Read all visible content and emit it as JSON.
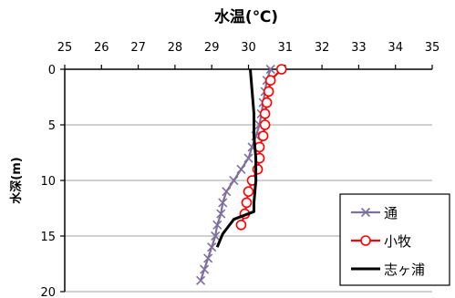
{
  "chart_data": {
    "type": "line",
    "title": "水温(℃)",
    "xlabel": "",
    "ylabel": "水深(m)",
    "x_axis_position": "top",
    "y_axis_inverted": true,
    "xlim": [
      25,
      35
    ],
    "ylim": [
      0,
      20
    ],
    "x_ticks": [
      "25",
      "26",
      "27",
      "28",
      "29",
      "30",
      "31",
      "32",
      "33",
      "34",
      "35"
    ],
    "y_ticks": [
      "0",
      "5",
      "10",
      "15",
      "20"
    ],
    "grid": "horizontal",
    "legend_position": "bottom-right",
    "series": [
      {
        "name": "通",
        "color": "#7f6fa0",
        "marker": "x",
        "points": [
          [
            30.6,
            0
          ],
          [
            30.5,
            1
          ],
          [
            30.45,
            2
          ],
          [
            30.4,
            3
          ],
          [
            30.35,
            4
          ],
          [
            30.3,
            5
          ],
          [
            30.2,
            6
          ],
          [
            30.1,
            7
          ],
          [
            30.0,
            8
          ],
          [
            29.8,
            9
          ],
          [
            29.6,
            10
          ],
          [
            29.4,
            11
          ],
          [
            29.3,
            12
          ],
          [
            29.25,
            13
          ],
          [
            29.15,
            14
          ],
          [
            29.1,
            15
          ],
          [
            29.0,
            16
          ],
          [
            28.9,
            17
          ],
          [
            28.8,
            18
          ],
          [
            28.7,
            19
          ]
        ]
      },
      {
        "name": "小牧",
        "color": "#ff0000",
        "marker": "circle",
        "points": [
          [
            30.9,
            0
          ],
          [
            30.6,
            1
          ],
          [
            30.55,
            2
          ],
          [
            30.5,
            3
          ],
          [
            30.45,
            4
          ],
          [
            30.45,
            5
          ],
          [
            30.4,
            6
          ],
          [
            30.3,
            7
          ],
          [
            30.3,
            8
          ],
          [
            30.25,
            9
          ],
          [
            30.1,
            10
          ],
          [
            30.0,
            11
          ],
          [
            29.95,
            12
          ],
          [
            29.9,
            13
          ],
          [
            29.8,
            14
          ]
        ]
      },
      {
        "name": "志ヶ浦",
        "color": "#000000",
        "marker": "none",
        "points": [
          [
            30.05,
            0
          ],
          [
            30.1,
            2
          ],
          [
            30.15,
            4
          ],
          [
            30.15,
            6
          ],
          [
            30.2,
            8
          ],
          [
            30.2,
            10
          ],
          [
            30.15,
            12
          ],
          [
            30.15,
            12.8
          ],
          [
            29.6,
            13.5
          ],
          [
            29.3,
            14.8
          ],
          [
            29.15,
            16
          ]
        ]
      }
    ]
  }
}
